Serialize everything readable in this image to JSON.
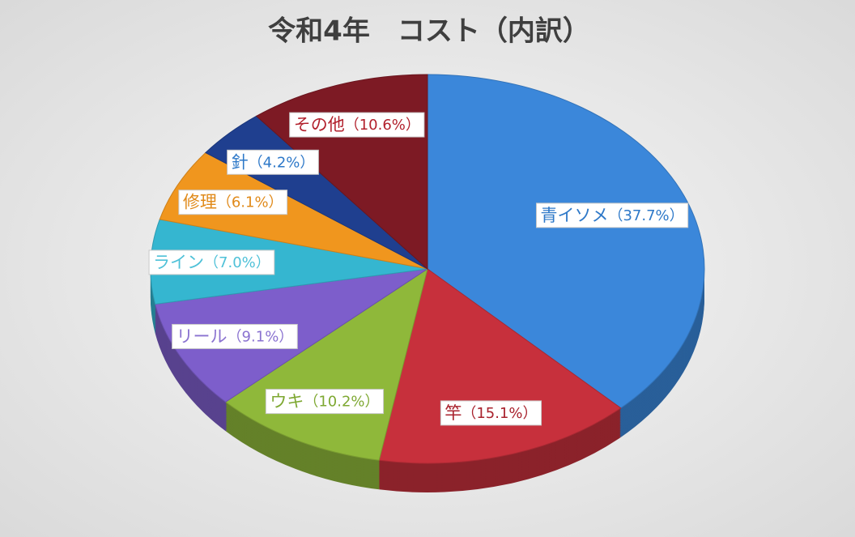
{
  "chart_data": {
    "type": "pie",
    "title": "令和4年　コスト（内訳）",
    "categories": [
      "青イソメ",
      "竿",
      "ウキ",
      "リール",
      "ライン",
      "修理",
      "針",
      "その他"
    ],
    "values": [
      37.7,
      15.1,
      10.2,
      9.1,
      7.0,
      6.1,
      4.2,
      10.6
    ],
    "value_labels": [
      "（37.7%）",
      "（15.1%）",
      "（10.2%）",
      "（9.1%）",
      "（7.0%）",
      "（6.1%）",
      "（4.2%）",
      "（10.6%）"
    ],
    "colors": [
      "#3b87da",
      "#c7303c",
      "#8fb83a",
      "#7d5ecb",
      "#35b6d0",
      "#f0961e",
      "#1f3f8f",
      "#7d1a24"
    ],
    "label_colors": [
      "#2d78c8",
      "#a8212c",
      "#7ea832",
      "#8a72d0",
      "#4fc1d8",
      "#e08a1a",
      "#2d78c8",
      "#b2202c"
    ]
  }
}
